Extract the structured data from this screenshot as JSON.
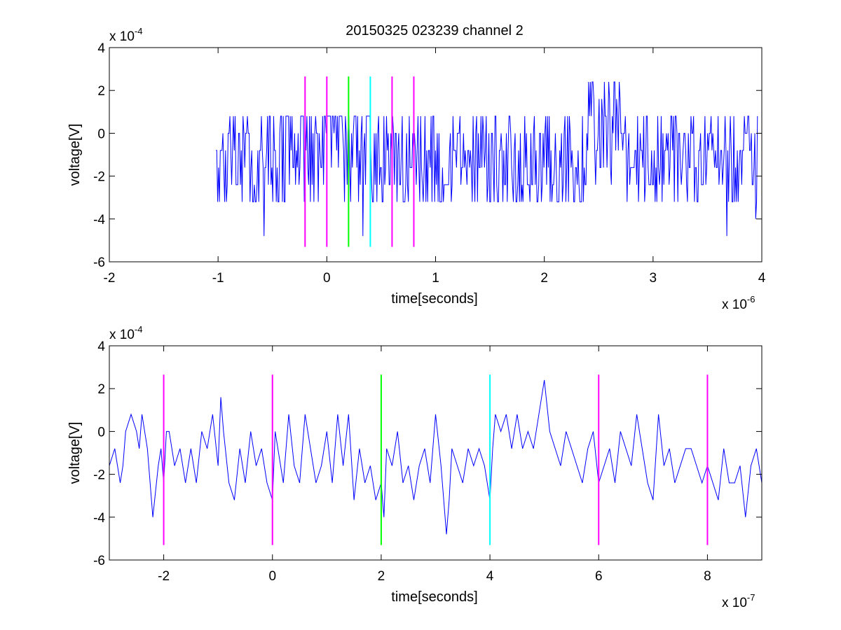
{
  "title": "20150325 023239 channel 2",
  "chart_data": [
    {
      "type": "line",
      "xlabel": "time[seconds]",
      "ylabel": "voltage[V]",
      "x_multiplier_label": "x 10",
      "x_multiplier_exp": "-6",
      "y_multiplier_label": "x 10",
      "y_multiplier_exp": "-4",
      "xlim": [
        -2,
        4
      ],
      "ylim": [
        -6,
        4
      ],
      "xticks": [
        -2,
        -1,
        0,
        1,
        2,
        3,
        4
      ],
      "yticks": [
        -6,
        -4,
        -2,
        0,
        2,
        4
      ],
      "xtick_labels": [
        "-2",
        "-1",
        "0",
        "1",
        "2",
        "3",
        "4"
      ],
      "ytick_labels": [
        "-6",
        "-4",
        "-2",
        "0",
        "2",
        "4"
      ],
      "series": [
        {
          "color": "#0000ff",
          "x_range": [
            -1.02,
            3.96
          ],
          "n_points": 620,
          "levels": [
            -3.2,
            -2.4,
            -1.6,
            -0.8,
            0,
            0.8
          ],
          "baseline_mean": -1.0,
          "peak_region": {
            "x": [
              2.4,
              2.7
            ],
            "max": 2.4
          },
          "min_spikes": [
            {
              "x": -0.58,
              "y": -4.8
            },
            {
              "x": 3.68,
              "y": -4.8
            },
            {
              "x": 3.94,
              "y": -4.0
            },
            {
              "x": 0.33,
              "y": -4.8
            }
          ]
        }
      ],
      "markers": [
        {
          "x": -0.2,
          "color": "#ff00ff"
        },
        {
          "x": 0.0,
          "color": "#ff00ff"
        },
        {
          "x": 0.2,
          "color": "#00ff00"
        },
        {
          "x": 0.4,
          "color": "#00ffff"
        },
        {
          "x": 0.6,
          "color": "#ff00ff"
        },
        {
          "x": 0.8,
          "color": "#ff00ff"
        }
      ],
      "marker_y_range": [
        -5.3,
        2.65
      ],
      "grid": false
    },
    {
      "type": "line",
      "xlabel": "time[seconds]",
      "ylabel": "voltage[V]",
      "x_multiplier_label": "x 10",
      "x_multiplier_exp": "-7",
      "y_multiplier_label": "x 10",
      "y_multiplier_exp": "-4",
      "xlim": [
        -3,
        9
      ],
      "ylim": [
        -6,
        4
      ],
      "xticks": [
        -2,
        0,
        2,
        4,
        6,
        8
      ],
      "yticks": [
        -6,
        -4,
        -2,
        0,
        2,
        4
      ],
      "xtick_labels": [
        "-2",
        "0",
        "2",
        "4",
        "6",
        "8"
      ],
      "ytick_labels": [
        "-6",
        "-4",
        "-2",
        "0",
        "2",
        "4"
      ],
      "series": [
        {
          "color": "#0000ff",
          "x": [
            -3.0,
            -2.9,
            -2.8,
            -2.75,
            -2.7,
            -2.6,
            -2.5,
            -2.45,
            -2.4,
            -2.3,
            -2.2,
            -2.1,
            -2.05,
            -2.0,
            -1.95,
            -1.9,
            -1.8,
            -1.7,
            -1.6,
            -1.5,
            -1.4,
            -1.3,
            -1.2,
            -1.1,
            -1.0,
            -0.95,
            -0.9,
            -0.8,
            -0.7,
            -0.6,
            -0.5,
            -0.4,
            -0.3,
            -0.2,
            -0.1,
            0.0,
            0.05,
            0.1,
            0.2,
            0.3,
            0.4,
            0.5,
            0.6,
            0.7,
            0.8,
            0.9,
            1.0,
            1.1,
            1.2,
            1.3,
            1.4,
            1.5,
            1.6,
            1.7,
            1.8,
            1.9,
            2.0,
            2.05,
            2.1,
            2.2,
            2.3,
            2.4,
            2.5,
            2.6,
            2.7,
            2.8,
            2.9,
            3.0,
            3.1,
            3.2,
            3.25,
            3.3,
            3.4,
            3.5,
            3.6,
            3.7,
            3.8,
            3.9,
            4.0,
            4.05,
            4.1,
            4.2,
            4.3,
            4.4,
            4.5,
            4.6,
            4.7,
            4.8,
            4.9,
            5.0,
            5.1,
            5.2,
            5.3,
            5.4,
            5.5,
            5.6,
            5.7,
            5.8,
            5.9,
            6.0,
            6.1,
            6.2,
            6.3,
            6.4,
            6.5,
            6.6,
            6.7,
            6.8,
            6.9,
            7.0,
            7.1,
            7.2,
            7.3,
            7.4,
            7.5,
            7.6,
            7.7,
            7.8,
            7.9,
            8.0,
            8.1,
            8.2,
            8.3,
            8.4,
            8.5,
            8.6,
            8.7,
            8.8,
            8.9,
            9.0
          ],
          "y": [
            -1.6,
            -0.8,
            -2.4,
            -1.6,
            0.0,
            0.8,
            0.0,
            -0.8,
            0.8,
            -0.8,
            -4.0,
            -1.6,
            -0.8,
            -2.4,
            0.0,
            0.0,
            -1.6,
            -0.8,
            -2.4,
            -0.8,
            -2.4,
            0.0,
            -0.8,
            0.8,
            -1.6,
            1.6,
            0.0,
            -2.4,
            -3.2,
            -0.8,
            -2.4,
            0.0,
            -1.6,
            -0.8,
            -2.4,
            -3.2,
            0.0,
            -0.8,
            -2.4,
            0.8,
            -1.6,
            -2.4,
            0.8,
            -0.8,
            -2.4,
            -1.6,
            0.0,
            -2.4,
            0.8,
            -1.6,
            0.8,
            -3.2,
            -0.8,
            -2.4,
            -1.6,
            -3.2,
            -2.4,
            -4.0,
            -0.8,
            -1.6,
            0.0,
            -2.4,
            -1.6,
            -3.2,
            -1.6,
            -0.8,
            -2.4,
            0.8,
            -1.6,
            -4.8,
            -3.2,
            -0.8,
            -1.6,
            -2.4,
            -0.8,
            -1.6,
            -0.8,
            -1.6,
            -3.2,
            -0.8,
            0.8,
            0.0,
            0.8,
            -0.8,
            0.8,
            -0.8,
            0.0,
            -0.8,
            0.8,
            2.4,
            0.0,
            -0.8,
            -1.6,
            0.0,
            -0.8,
            -1.6,
            -2.4,
            -0.8,
            0.0,
            -2.4,
            -1.6,
            -0.8,
            -2.4,
            0.0,
            -0.8,
            -1.6,
            0.8,
            -0.8,
            -2.4,
            -3.2,
            0.8,
            -1.6,
            -0.8,
            -2.4,
            -1.6,
            -0.8,
            -0.8,
            -1.6,
            -2.4,
            -1.6,
            -2.4,
            -3.2,
            -0.8,
            -2.4,
            -2.4,
            -1.6,
            -4.0,
            -1.6,
            -0.8,
            -2.4
          ]
        }
      ],
      "markers": [
        {
          "x": -2.0,
          "color": "#ff00ff"
        },
        {
          "x": 0.0,
          "color": "#ff00ff"
        },
        {
          "x": 2.0,
          "color": "#00ff00"
        },
        {
          "x": 4.0,
          "color": "#00ffff"
        },
        {
          "x": 6.0,
          "color": "#ff00ff"
        },
        {
          "x": 8.0,
          "color": "#ff00ff"
        }
      ],
      "marker_y_range": [
        -5.3,
        2.65
      ],
      "grid": false
    }
  ]
}
